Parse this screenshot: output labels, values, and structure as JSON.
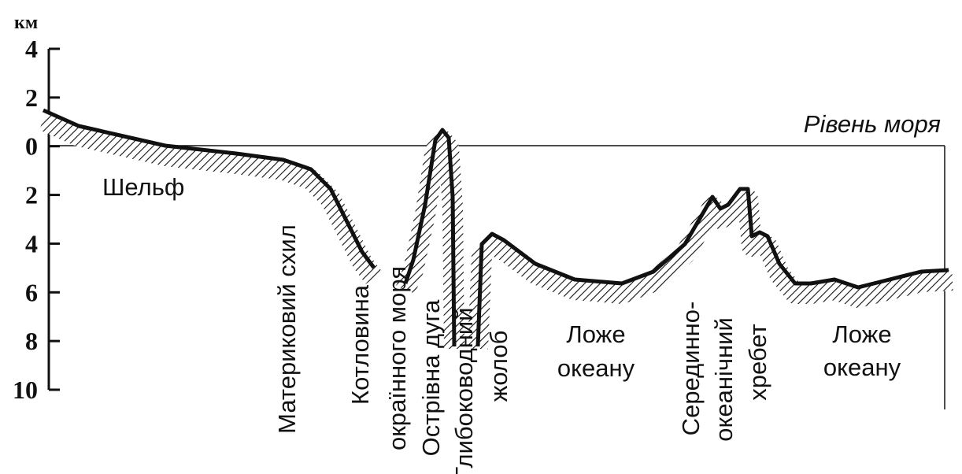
{
  "axis": {
    "unit": "км",
    "ticks": [
      "4",
      "2",
      "0",
      "2",
      "4",
      "6",
      "8",
      "10"
    ]
  },
  "sea_level": "Рівень моря",
  "labels": {
    "shelf": "Шельф",
    "slope": "Материковий схил",
    "basin": [
      "Котловина",
      "окраїнного моря"
    ],
    "arc": "Острівна дуга",
    "trench": [
      "Глибоководний",
      "жолоб"
    ],
    "floor_1": [
      "Ложе",
      "океану"
    ],
    "ridge": [
      "Серединно-",
      "океанічний",
      "хребет"
    ],
    "floor_2": [
      "Ложе",
      "океану"
    ]
  }
}
